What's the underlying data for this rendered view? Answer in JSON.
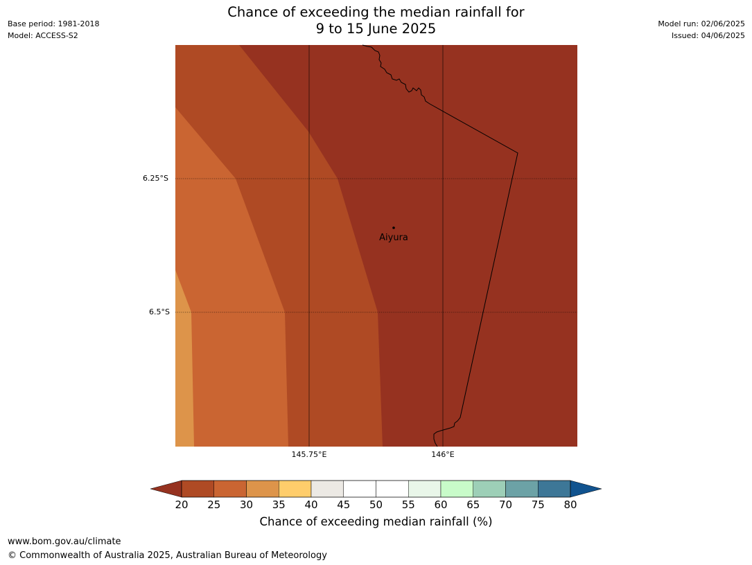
{
  "header": {
    "title_line1": "Chance of exceeding the median rainfall for",
    "title_line2": "9 to 15 June 2025",
    "base_period": "Base period: 1981-2018",
    "model": "Model: ACCESS-S2",
    "model_run": "Model run: 02/06/2025",
    "issued": "Issued: 04/06/2025"
  },
  "map": {
    "lat_labels": [
      "6.25°S",
      "6.5°S"
    ],
    "lon_labels": [
      "145.75°E",
      "146°E"
    ],
    "place": {
      "name": "Aiyura",
      "marker": "point-marker"
    },
    "zone_colors": [
      "#dd944a",
      "#ca6532",
      "#af4a24",
      "#963220"
    ],
    "border_color": "#000000"
  },
  "colorbar": {
    "label": "Chance of exceeding median rainfall (%)",
    "ticks": [
      "20",
      "25",
      "30",
      "35",
      "40",
      "45",
      "50",
      "55",
      "60",
      "65",
      "70",
      "75",
      "80"
    ],
    "under_color": "#963220",
    "over_color": "#11538f",
    "bins": [
      "#af4a24",
      "#ca6532",
      "#dd944a",
      "#ffcd6b",
      "#ece9e4",
      "#ffffff",
      "#ffffff",
      "#e9f6e9",
      "#c8fbc9",
      "#9dcfb7",
      "#6ca2a6",
      "#3d7797"
    ]
  },
  "footer": {
    "url": "www.bom.gov.au/climate",
    "copyright": "© Commonwealth of Australia 2025, Australian Bureau of Meteorology"
  }
}
